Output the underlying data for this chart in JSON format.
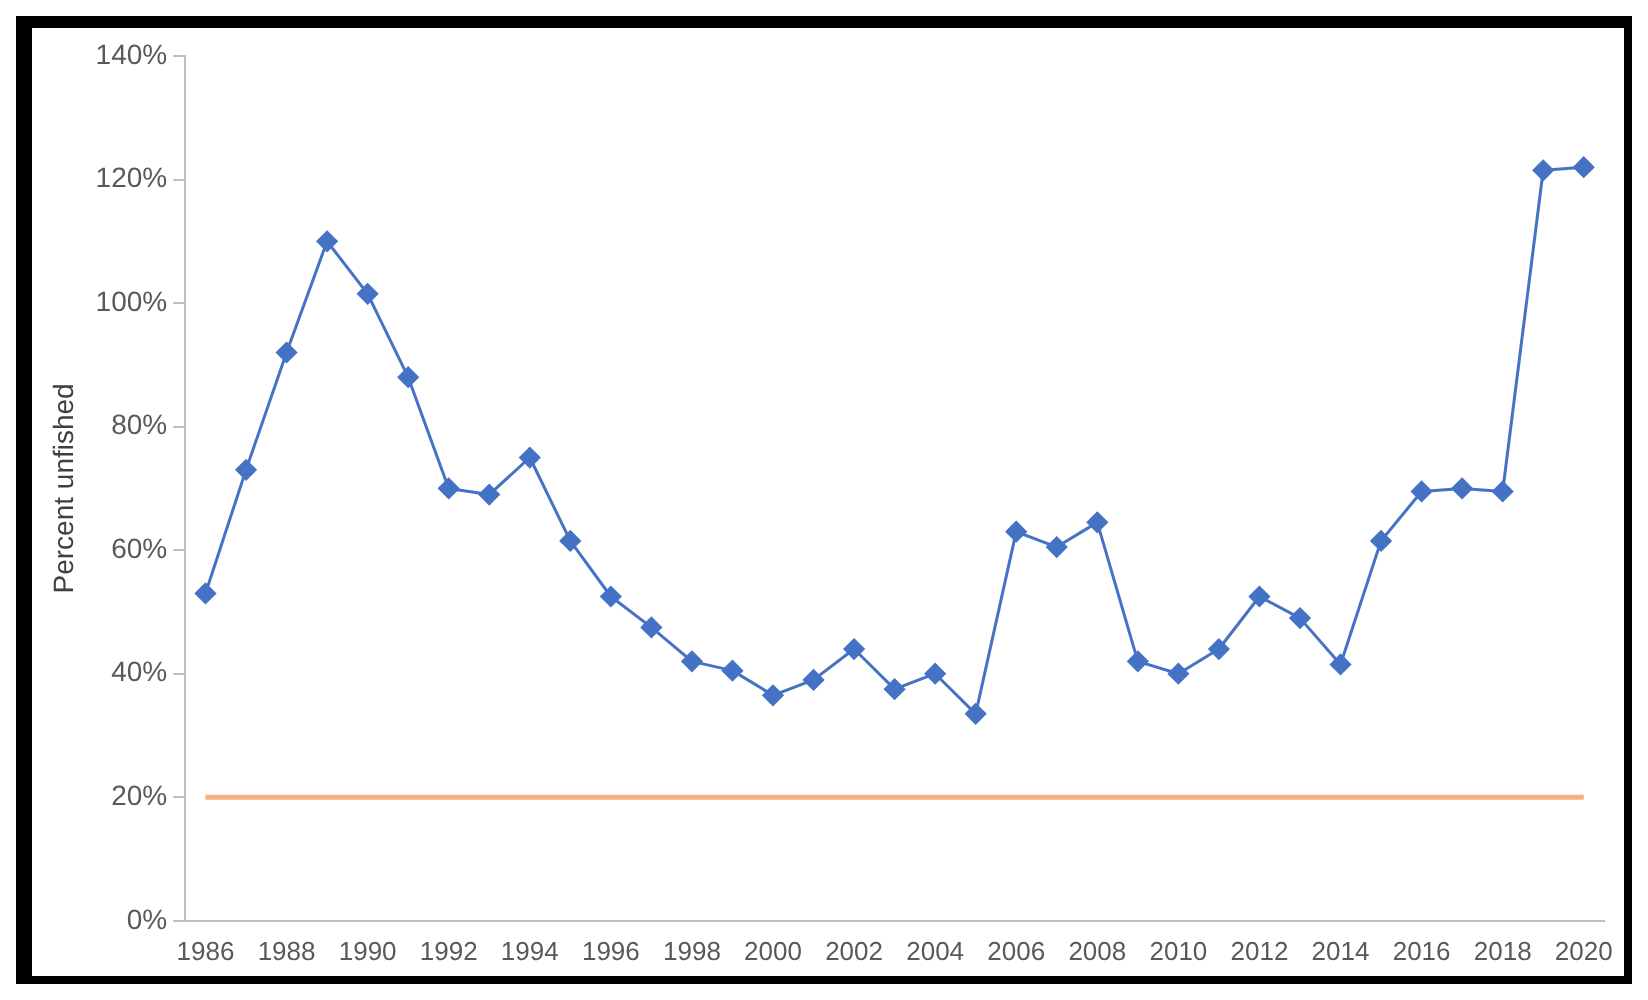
{
  "chart_data": {
    "type": "line",
    "ylabel": "Percent unfished",
    "categories": [
      "1986",
      null,
      "1988",
      null,
      "1990",
      null,
      "1992",
      null,
      "1994",
      null,
      "1996",
      null,
      "1998",
      null,
      "2000",
      null,
      "2002",
      null,
      "2004",
      null,
      "2006",
      null,
      "2008",
      null,
      "2010",
      null,
      "2012",
      null,
      "2014",
      null,
      "2016",
      null,
      "2018",
      null,
      "2020"
    ],
    "series": [
      {
        "color": "#4472c4",
        "values": [
          53,
          73,
          92,
          110,
          101.5,
          88,
          70,
          69,
          75,
          61.5,
          52.5,
          47.5,
          42,
          40.5,
          36.5,
          39,
          44,
          37.5,
          40,
          33.5,
          63,
          60.5,
          64.5,
          42,
          40,
          44,
          52.5,
          49,
          41.5,
          61.5,
          69.5,
          70,
          69.5,
          121.5,
          122
        ]
      }
    ],
    "ylim": [
      0,
      140
    ],
    "yticks": [
      {
        "value": 0,
        "label": "0%"
      },
      {
        "value": 20,
        "label": "20%"
      },
      {
        "value": 40,
        "label": "40%"
      },
      {
        "value": 60,
        "label": "60%"
      },
      {
        "value": 80,
        "label": "80%"
      },
      {
        "value": 100,
        "label": "100%"
      },
      {
        "value": 120,
        "label": "120%"
      },
      {
        "value": 140,
        "label": "140%"
      }
    ],
    "ref_lines": [
      {
        "axis": "y",
        "value": 20,
        "color": "#f4b183"
      }
    ],
    "grid": false,
    "legend": false,
    "marker": "diamond",
    "line_style": "solid"
  }
}
